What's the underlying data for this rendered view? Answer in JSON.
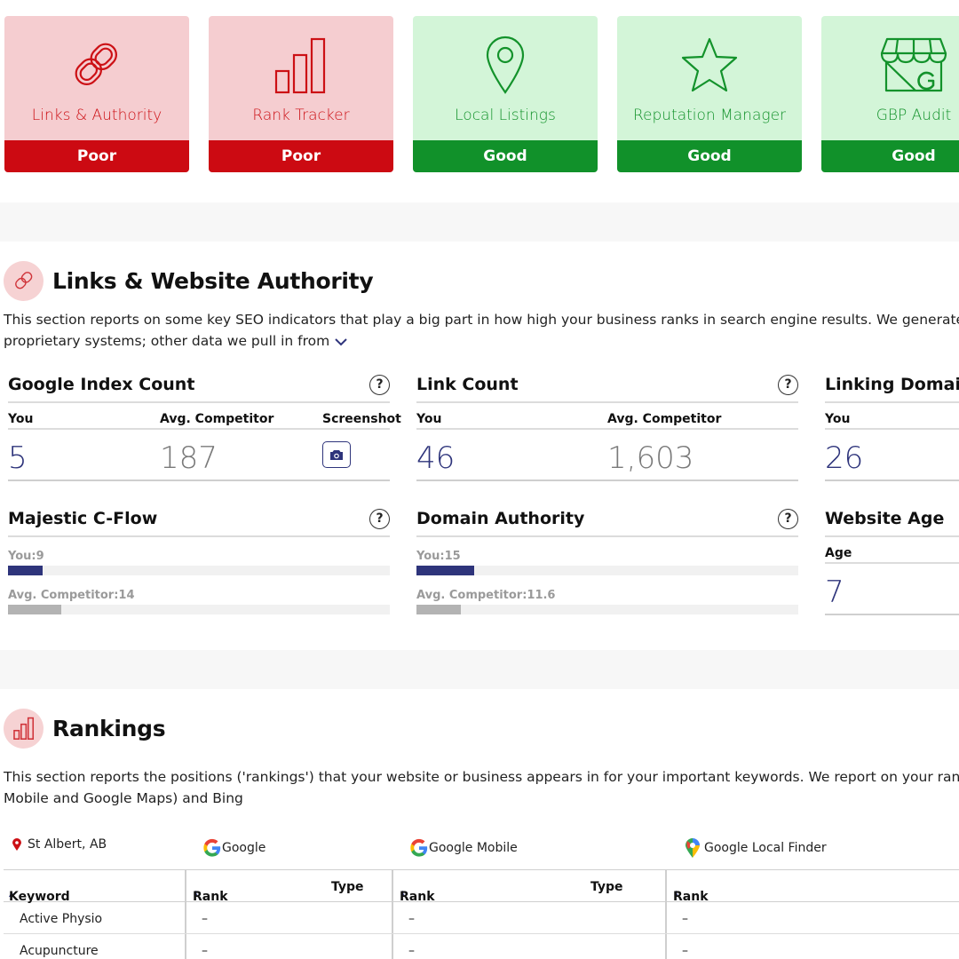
{
  "cards": [
    {
      "label": "Links & Authority",
      "status": "Poor",
      "icon": "chain-link-icon"
    },
    {
      "label": "Rank Tracker",
      "status": "Poor",
      "icon": "bar-chart-icon"
    },
    {
      "label": "Local Listings",
      "status": "Good",
      "icon": "map-pin-icon"
    },
    {
      "label": "Reputation Manager",
      "status": "Good",
      "icon": "star-icon"
    },
    {
      "label": "GBP Audit",
      "status": "Good",
      "icon": "storefront-icon"
    }
  ],
  "links_section": {
    "title": "Links & Website Authority",
    "desc_line1": "This section reports on some key SEO indicators that play a big part in how high your business ranks in search engine results. We generate some",
    "desc_line2": "proprietary systems; other data we pull in from",
    "google_index": {
      "title": "Google Index Count",
      "you_label": "You",
      "comp_label": "Avg. Competitor",
      "shot_label": "Screenshot",
      "you": "5",
      "comp": "187"
    },
    "link_count": {
      "title": "Link Count",
      "you_label": "You",
      "comp_label": "Avg. Competitor",
      "you": "46",
      "comp": "1,603"
    },
    "linking_domains": {
      "title": "Linking Domain",
      "you_label": "You",
      "you": "26"
    },
    "majestic": {
      "title": "Majestic C-Flow",
      "you_label": "You:9",
      "comp_label": "Avg. Competitor:14",
      "you_value": 9,
      "comp_value": 14,
      "scale_max": 100
    },
    "domain_authority": {
      "title": "Domain Authority",
      "you_label": "You:15",
      "comp_label": "Avg. Competitor:11.6",
      "you_value": 15,
      "comp_value": 11.6,
      "scale_max": 100
    },
    "website_age": {
      "title": "Website Age",
      "age_label": "Age",
      "age": "7"
    },
    "help": "?"
  },
  "rankings_section": {
    "title": "Rankings",
    "desc_line1": "This section reports the positions ('rankings') that your website or business appears in for your important keywords. We report on your rankings i",
    "desc_line2": "Mobile and Google Maps) and Bing",
    "location": "St Albert, AB",
    "engines": [
      "Google",
      "Google Mobile",
      "Google Local Finder"
    ],
    "headers": {
      "keyword": "Keyword",
      "rank": "Rank",
      "type": "Type"
    },
    "rows": [
      {
        "keyword": "Active Physio",
        "g_rank": "–",
        "m_rank": "–",
        "l_rank": "–"
      },
      {
        "keyword": "Acupuncture",
        "g_rank": "–",
        "m_rank": "–",
        "l_rank": "–"
      }
    ]
  },
  "colors": {
    "poor": "#cc0a12",
    "good": "#11912a",
    "accent": "#2e347b"
  }
}
